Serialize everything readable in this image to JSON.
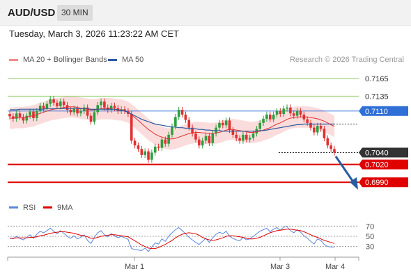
{
  "header": {
    "symbol": "AUD/USD",
    "timeframe": "30 MIN"
  },
  "timestamp": "Tuesday, March 3, 2026 11:23:22 AM CET",
  "legend": [
    {
      "label": "MA 20 + Bollinger Bands",
      "color": "#f08a8a"
    },
    {
      "label": "MA 50",
      "color": "#2a5aa0"
    }
  ],
  "credit": "Research © 2026 Trading Central",
  "rsi_legend": [
    {
      "label": "RSI",
      "color": "#5b87d8"
    },
    {
      "label": "9MA",
      "color": "#e00000"
    }
  ],
  "colors": {
    "up": "#2e9e3e",
    "down": "#e03030",
    "resistance": "#8fcf6a",
    "support": "#e00000",
    "pivot": "#2f6fd6",
    "arrow": "#2a5aa0",
    "bands": "#fad6d6"
  },
  "chart_data": [
    {
      "type": "candlestick",
      "title": "AUD/USD",
      "x_ticks": [
        "Mar 1",
        "Mar 3",
        "Mar 4"
      ],
      "ylim": [
        0.6975,
        0.718
      ],
      "levels": [
        {
          "value": 0.7165,
          "label": "0.7165",
          "kind": "resistance"
        },
        {
          "value": 0.7135,
          "label": "0.7135",
          "kind": "resistance"
        },
        {
          "value": 0.711,
          "label": "0.7110",
          "kind": "pivot"
        },
        {
          "value": 0.704,
          "label": "0.7040",
          "kind": "last"
        },
        {
          "value": 0.702,
          "label": "0.7020",
          "kind": "support"
        },
        {
          "value": 0.699,
          "label": "0.6990",
          "kind": "support"
        }
      ],
      "close": [
        0.7101,
        0.7097,
        0.7106,
        0.71,
        0.7094,
        0.7102,
        0.7109,
        0.7098,
        0.711,
        0.7119,
        0.7114,
        0.7122,
        0.713,
        0.7124,
        0.7118,
        0.7126,
        0.712,
        0.7112,
        0.7108,
        0.7114,
        0.7106,
        0.711,
        0.7116,
        0.7102,
        0.7092,
        0.7108,
        0.712,
        0.7126,
        0.7116,
        0.7112,
        0.7119,
        0.7115,
        0.711,
        0.7113,
        0.711,
        0.7105,
        0.706,
        0.7052,
        0.7046,
        0.7036,
        0.7042,
        0.7028,
        0.704,
        0.705,
        0.7048,
        0.7062,
        0.7055,
        0.707,
        0.7084,
        0.71,
        0.7112,
        0.7104,
        0.7095,
        0.7082,
        0.7072,
        0.7062,
        0.7052,
        0.706,
        0.7068,
        0.7056,
        0.7072,
        0.7082,
        0.709,
        0.7086,
        0.7094,
        0.7078,
        0.707,
        0.7064,
        0.706,
        0.707,
        0.7062,
        0.7065,
        0.7072,
        0.708,
        0.709,
        0.7097,
        0.7104,
        0.7096,
        0.7104,
        0.711,
        0.7105,
        0.7114,
        0.7116,
        0.7106,
        0.7102,
        0.711,
        0.7104,
        0.7096,
        0.709,
        0.7082,
        0.7074,
        0.7085,
        0.708,
        0.7064,
        0.7052,
        0.7046,
        0.704
      ],
      "ma20": [
        0.7098,
        0.7098,
        0.7099,
        0.7099,
        0.7099,
        0.71,
        0.7101,
        0.7102,
        0.7104,
        0.7106,
        0.7108,
        0.711,
        0.7112,
        0.7113,
        0.7114,
        0.7115,
        0.7116,
        0.7117,
        0.7117,
        0.7117,
        0.7116,
        0.7115,
        0.7114,
        0.7113,
        0.7112,
        0.7112,
        0.7113,
        0.7114,
        0.7114,
        0.7114,
        0.7114,
        0.7113,
        0.7112,
        0.7112,
        0.711,
        0.7108,
        0.7104,
        0.7099,
        0.7094,
        0.7089,
        0.7084,
        0.7079,
        0.7075,
        0.7071,
        0.7068,
        0.7066,
        0.7064,
        0.7063,
        0.7063,
        0.7064,
        0.7066,
        0.7068,
        0.707,
        0.7072,
        0.7073,
        0.7074,
        0.7074,
        0.7073,
        0.7073,
        0.7072,
        0.7072,
        0.7073,
        0.7074,
        0.7076,
        0.7078,
        0.7079,
        0.7079,
        0.7078,
        0.7077,
        0.7076,
        0.7075,
        0.7074,
        0.7074,
        0.7075,
        0.7076,
        0.7078,
        0.708,
        0.7082,
        0.7085,
        0.7088,
        0.709,
        0.7093,
        0.7096,
        0.7098,
        0.7099,
        0.71,
        0.71,
        0.71,
        0.71,
        0.7099,
        0.7098,
        0.7097,
        0.7095,
        0.7093,
        0.709,
        0.7087,
        0.7084
      ],
      "bb_width": 0.0018,
      "ma50": [
        0.7112,
        0.7112,
        0.7112,
        0.7113,
        0.7113,
        0.7113,
        0.7113,
        0.7113,
        0.7113,
        0.7113,
        0.7113,
        0.7114,
        0.7114,
        0.7114,
        0.7114,
        0.7114,
        0.7114,
        0.7114,
        0.7114,
        0.7114,
        0.7114,
        0.7114,
        0.7114,
        0.7114,
        0.7113,
        0.7113,
        0.7113,
        0.7113,
        0.7113,
        0.7113,
        0.7113,
        0.7113,
        0.7112,
        0.7111,
        0.711,
        0.7108,
        0.7105,
        0.7102,
        0.7099,
        0.7096,
        0.7094,
        0.7092,
        0.709,
        0.7088,
        0.7087,
        0.7086,
        0.7085,
        0.7084,
        0.7083,
        0.7083,
        0.7082,
        0.7082,
        0.7081,
        0.7081,
        0.708,
        0.708,
        0.7079,
        0.7079,
        0.7078,
        0.7078,
        0.7077,
        0.7077,
        0.7077,
        0.7076,
        0.7076,
        0.7076,
        0.7076,
        0.7076,
        0.7076,
        0.7076,
        0.7076,
        0.7076,
        0.7076,
        0.7076,
        0.7077,
        0.7077,
        0.7078,
        0.7079,
        0.708,
        0.7081,
        0.7082,
        0.7083,
        0.7084,
        0.7085,
        0.7086,
        0.7087,
        0.7087,
        0.7088,
        0.7088,
        0.7088,
        0.7088,
        0.7088,
        0.7088,
        0.7088,
        0.7088,
        0.7088,
        0.7088
      ]
    },
    {
      "type": "line",
      "title": "RSI",
      "ylim": [
        20,
        80
      ],
      "y_ticks": [
        70,
        50,
        30
      ],
      "rsi": [
        47,
        45,
        50,
        46,
        43,
        48,
        53,
        46,
        54,
        60,
        57,
        61,
        66,
        60,
        55,
        61,
        56,
        50,
        46,
        51,
        45,
        48,
        53,
        42,
        36,
        48,
        57,
        61,
        53,
        49,
        55,
        51,
        47,
        50,
        47,
        44,
        26,
        24,
        23,
        22,
        27,
        20,
        29,
        37,
        35,
        45,
        40,
        50,
        57,
        63,
        67,
        61,
        55,
        48,
        43,
        38,
        34,
        40,
        46,
        38,
        47,
        54,
        58,
        55,
        60,
        50,
        46,
        43,
        41,
        48,
        43,
        45,
        50,
        55,
        60,
        63,
        66,
        59,
        64,
        67,
        62,
        68,
        69,
        61,
        57,
        63,
        58,
        51,
        46,
        40,
        35,
        45,
        42,
        34,
        30,
        29,
        29
      ],
      "ma9": [
        46,
        46,
        47,
        47,
        47,
        47,
        48,
        48,
        49,
        51,
        52,
        54,
        56,
        57,
        58,
        59,
        59,
        58,
        57,
        56,
        54,
        52,
        51,
        49,
        46,
        46,
        48,
        50,
        51,
        52,
        53,
        53,
        52,
        51,
        50,
        49,
        45,
        41,
        37,
        33,
        30,
        27,
        26,
        26,
        28,
        31,
        34,
        38,
        42,
        47,
        51,
        54,
        56,
        57,
        56,
        55,
        52,
        48,
        45,
        43,
        42,
        43,
        45,
        47,
        50,
        51,
        51,
        50,
        49,
        48,
        46,
        45,
        45,
        46,
        48,
        51,
        54,
        57,
        59,
        61,
        62,
        63,
        64,
        64,
        63,
        62,
        61,
        59,
        56,
        53,
        50,
        48,
        45,
        42,
        40,
        38,
        36
      ]
    }
  ]
}
